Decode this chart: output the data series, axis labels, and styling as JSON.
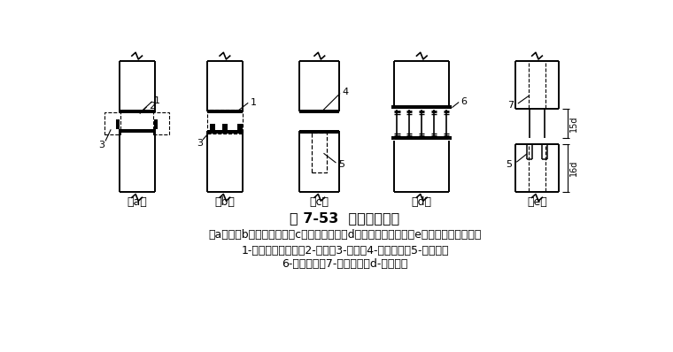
{
  "bg_color": "#ffffff",
  "line_color": "#000000",
  "title": "图 7-53  桩的接头型式",
  "caption_line1": "（a）、（b）焊接接合；（c）管式接合；（d）管桩螺栓接合；（e）硫磺砂浆锚筋接合",
  "caption_line2": "1-角钢与主筋焊接；2-钢板；3-焊缝；4-预埋钢管；5-浆锚孔；",
  "caption_line3": "6-预埋法兰；7-预埋锚筋；d-锚栓直径",
  "label_a": "（a）",
  "label_b": "（b）",
  "label_c": "（c）",
  "label_d": "（d）",
  "label_e": "（e）",
  "fig_width": 7.6,
  "fig_height": 3.98,
  "dpi": 100
}
